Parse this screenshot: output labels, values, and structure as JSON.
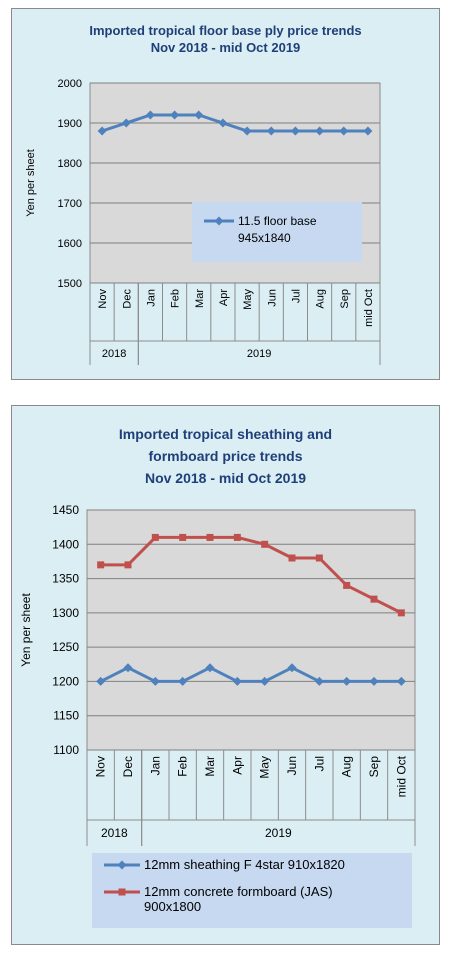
{
  "colors": {
    "panel_bg": "#dbeef4",
    "plot_bg": "#d9d9d9",
    "title": "#1f3f78",
    "series_blue": "#4f81bd",
    "series_red": "#c0504d",
    "legend_bg": "#c6d9f1"
  },
  "chart_data": [
    {
      "type": "line",
      "title_line1": "Imported tropical floor base ply price trends",
      "title_line2": "Nov 2018 - mid Oct 2019",
      "ylabel": "Yen per sheet",
      "ylim": [
        1500,
        2000
      ],
      "yticks": [
        "1500",
        "1600",
        "1700",
        "1800",
        "1900",
        "2000"
      ],
      "categories": [
        "Nov",
        "Dec",
        "Jan",
        "Feb",
        "Mar",
        "Apr",
        "May",
        "Jun",
        "Jul",
        "Aug",
        "Sep",
        "mid Oct"
      ],
      "years": [
        {
          "label": "2018",
          "span": [
            0,
            1
          ]
        },
        {
          "label": "2019",
          "span": [
            2,
            11
          ]
        }
      ],
      "grid": "horizontal",
      "legend_placement": "center-right",
      "series": [
        {
          "name_line1": "11.5 floor base",
          "name_line2": "945x1840",
          "color": "#4f81bd",
          "marker": "diamond",
          "values": [
            1880,
            1900,
            1920,
            1920,
            1920,
            1900,
            1880,
            1880,
            1880,
            1880,
            1880,
            1880
          ]
        }
      ]
    },
    {
      "type": "line",
      "title_line1": "Imported tropical sheathing and",
      "title_line2": "formboard price trends",
      "title_line3": "Nov 2018 - mid Oct 2019",
      "ylabel": "Yen per sheet",
      "ylim": [
        1100,
        1450
      ],
      "yticks": [
        "1100",
        "1150",
        "1200",
        "1250",
        "1300",
        "1350",
        "1400",
        "1450"
      ],
      "categories": [
        "Nov",
        "Dec",
        "Jan",
        "Feb",
        "Mar",
        "Apr",
        "May",
        "Jun",
        "Jul",
        "Aug",
        "Sep",
        "mid Oct"
      ],
      "years": [
        {
          "label": "2018",
          "span": [
            0,
            1
          ]
        },
        {
          "label": "2019",
          "span": [
            2,
            11
          ]
        }
      ],
      "grid": "horizontal",
      "legend_placement": "bottom",
      "series": [
        {
          "name_line1": "12mm sheathing F 4star 910x1820",
          "name_line2": "",
          "color": "#4f81bd",
          "marker": "diamond",
          "values": [
            1200,
            1220,
            1200,
            1200,
            1220,
            1200,
            1200,
            1220,
            1200,
            1200,
            1200,
            1200
          ]
        },
        {
          "name_line1": "12mm concrete formboard (JAS)",
          "name_line2": "900x1800",
          "color": "#c0504d",
          "marker": "square",
          "values": [
            1370,
            1370,
            1410,
            1410,
            1410,
            1410,
            1400,
            1380,
            1380,
            1340,
            1320,
            1300
          ]
        }
      ]
    }
  ]
}
